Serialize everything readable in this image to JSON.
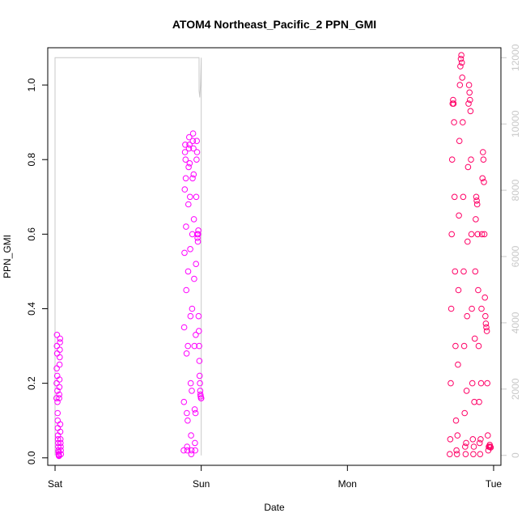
{
  "chart_data": {
    "type": "scatter",
    "title": "ATOM4 Northeast_Pacific_2 PPN_GMI",
    "xlabel": "Date",
    "ylabel": "PPN_GMI",
    "x_ticks": [
      {
        "label": "Sat",
        "day": 0
      },
      {
        "label": "Sun",
        "day": 1
      },
      {
        "label": "Mon",
        "day": 2
      },
      {
        "label": "Tue",
        "day": 3
      }
    ],
    "xlim": [
      -0.05,
      3.05
    ],
    "ylim": [
      -0.02,
      1.1
    ],
    "y_ticks": [
      0.0,
      0.2,
      0.4,
      0.6,
      0.8,
      1.0
    ],
    "y_tick_labels": [
      "0.0",
      "0.2",
      "0.4",
      "0.6",
      "0.8",
      "1.0"
    ],
    "y2lim": [
      -300,
      12300
    ],
    "y2_ticks": [
      0,
      2000,
      4000,
      6000,
      8000,
      10000,
      12000
    ],
    "y2_tick_labels": [
      "0",
      "2000",
      "4000",
      "6000",
      "8000",
      "10000",
      "12000"
    ],
    "grid": false,
    "colors": {
      "points_early": "#ff00ff",
      "points_late": "#ff0066",
      "secondary_line": "#c8c8c8"
    },
    "series": [
      {
        "role": "primary_points",
        "segments": [
          {
            "x_start": 0.01,
            "x_end": 0.04,
            "values": [
              0.16,
              0.2,
              0.24,
              0.3,
              0.33,
              0.28,
              0.22,
              0.18,
              0.15,
              0.12,
              0.1,
              0.08,
              0.06,
              0.05,
              0.04,
              0.03,
              0.02,
              0.015,
              0.01,
              0.008,
              0.006,
              0.005,
              0.16,
              0.17,
              0.19,
              0.21,
              0.25,
              0.27,
              0.29,
              0.31,
              0.32,
              0.09,
              0.07,
              0.05,
              0.04,
              0.03,
              0.02,
              0.01
            ]
          },
          {
            "x_start": 0.88,
            "x_end": 1.0,
            "values": [
              0.02,
              0.15,
              0.35,
              0.55,
              0.72,
              0.82,
              0.84,
              0.8,
              0.75,
              0.62,
              0.45,
              0.28,
              0.12,
              0.03,
              0.02,
              0.1,
              0.3,
              0.5,
              0.68,
              0.78,
              0.83,
              0.86,
              0.84,
              0.79,
              0.7,
              0.56,
              0.38,
              0.2,
              0.06,
              0.01,
              0.02,
              0.18,
              0.4,
              0.6,
              0.75,
              0.85,
              0.87,
              0.83,
              0.76,
              0.64,
              0.48,
              0.3,
              0.13,
              0.04,
              0.02,
              0.12,
              0.33,
              0.52,
              0.7,
              0.8,
              0.85,
              0.82,
              0.6,
              0.59,
              0.58,
              0.6,
              0.61,
              0.38,
              0.34,
              0.3,
              0.26,
              0.22,
              0.2,
              0.18,
              0.17,
              0.165,
              0.16,
              0.16
            ]
          },
          {
            "x_start": 2.7,
            "x_end": 2.98,
            "values": [
              0.01,
              0.05,
              0.2,
              0.4,
              0.6,
              0.8,
              0.95,
              0.96,
              0.95,
              0.9,
              0.7,
              0.5,
              0.3,
              0.1,
              0.02,
              0.01,
              0.06,
              0.25,
              0.45,
              0.65,
              0.85,
              1.0,
              1.05,
              1.07,
              1.08,
              1.06,
              1.02,
              0.9,
              0.7,
              0.5,
              0.3,
              0.12,
              0.03,
              0.01,
              0.04,
              0.18,
              0.38,
              0.58,
              0.78,
              0.95,
              1.0,
              0.98,
              0.96,
              0.93,
              0.8,
              0.6,
              0.4,
              0.2,
              0.05,
              0.01,
              0.03,
              0.15,
              0.32,
              0.5,
              0.64,
              0.7,
              0.69,
              0.68,
              0.6,
              0.45,
              0.3,
              0.15,
              0.04,
              0.01,
              0.05,
              0.2,
              0.4,
              0.6,
              0.75,
              0.82,
              0.8,
              0.74,
              0.6,
              0.43,
              0.38,
              0.36,
              0.35,
              0.34,
              0.2,
              0.06,
              0.02,
              0.03,
              0.03,
              0.035,
              0.03,
              0.028
            ]
          }
        ]
      },
      {
        "role": "secondary_line",
        "axis": "right",
        "points": [
          {
            "x": 0.0,
            "y": 0
          },
          {
            "x": 0.0,
            "y": 12000
          },
          {
            "x": 0.985,
            "y": 12000
          },
          {
            "x": 0.985,
            "y": 11000
          },
          {
            "x": 0.99,
            "y": 10800
          },
          {
            "x": 0.995,
            "y": 11200
          },
          {
            "x": 1.0,
            "y": 12000
          },
          {
            "x": 1.0,
            "y": 0
          }
        ]
      }
    ]
  }
}
